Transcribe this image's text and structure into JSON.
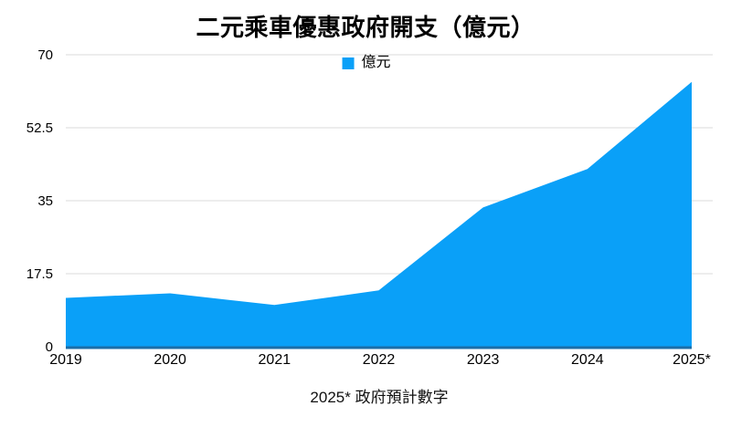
{
  "title": "二元乘車優惠政府開支（億元）",
  "legend": {
    "label": "億元"
  },
  "caption": "2025* 政府預計數字",
  "colors": {
    "area": "#0AA0F8",
    "baseline": "#1C6EA8",
    "gridline": "#DBDBDB",
    "text": "#000000"
  },
  "chart_data": {
    "type": "area",
    "title": "二元乘車優惠政府開支（億元）",
    "categories": [
      "2019",
      "2020",
      "2021",
      "2022",
      "2023",
      "2024",
      "2025*"
    ],
    "series": [
      {
        "name": "億元",
        "values": [
          11.7,
          12.8,
          10,
          13.5,
          33.4,
          42.6,
          63.5
        ]
      }
    ],
    "xlabel": "",
    "ylabel": "",
    "ylim": [
      0,
      70
    ],
    "yticks": [
      0,
      17.5,
      35,
      52.5,
      70
    ],
    "ytick_labels": [
      "0",
      "17.5",
      "35",
      "52.5",
      "70"
    ],
    "grid": true,
    "legend_position": "top-center",
    "annotation": "2025* 政府預計數字"
  }
}
